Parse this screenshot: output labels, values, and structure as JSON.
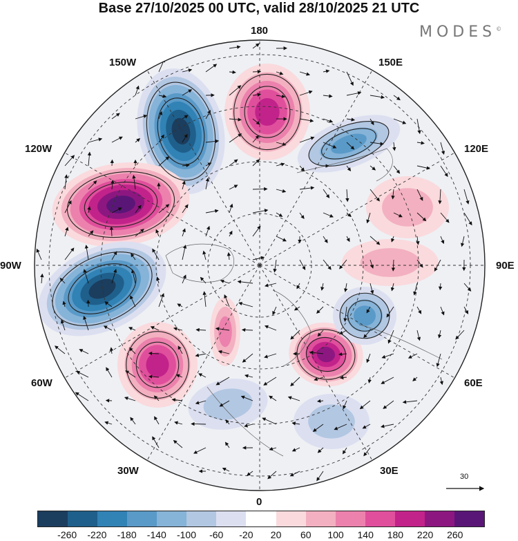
{
  "title": "Base 27/10/2025 00 UTC, valid 28/10/2025 21 UTC",
  "brand": "MODES",
  "brand_mark": "©",
  "longitudes": {
    "lon_180": "180",
    "lon_150e": "150E",
    "lon_120e": "120E",
    "lon_90e": "90E",
    "lon_60e": "60E",
    "lon_30e": "30E",
    "lon_0": "0",
    "lon_30w": "30W",
    "lon_60w": "60W",
    "lon_90w": "90W",
    "lon_120w": "120W",
    "lon_150w": "150W"
  },
  "reference_vector": {
    "value": "30"
  },
  "colorbar": {
    "labels": [
      "-260",
      "-220",
      "-180",
      "-140",
      "-100",
      "-60",
      "-20",
      "20",
      "60",
      "100",
      "140",
      "180",
      "220",
      "260"
    ],
    "colors": [
      "#1b3d5e",
      "#1f5f8b",
      "#3182b5",
      "#5a9ac8",
      "#86b3d8",
      "#b2c7e2",
      "#dcdff0",
      "#ffffff",
      "#fadadd",
      "#f3b0c0",
      "#ec81ad",
      "#e04f9c",
      "#c2238a",
      "#8d1781",
      "#5a1677"
    ]
  },
  "anomalies": [
    {
      "id": "low-150w",
      "value": -300
    },
    {
      "id": "high-180",
      "value": 220
    },
    {
      "id": "low-150e",
      "value": -160
    },
    {
      "id": "high-120w",
      "value": 300
    },
    {
      "id": "low-90w",
      "value": -300
    },
    {
      "id": "high-50w",
      "value": 200
    },
    {
      "id": "high-20e",
      "value": 230
    },
    {
      "id": "low-70e",
      "value": -180
    },
    {
      "id": "high-0",
      "value": 110
    },
    {
      "id": "low-10w",
      "value": -90
    },
    {
      "id": "low-20e",
      "value": -70
    },
    {
      "id": "high-90e",
      "value": 80
    },
    {
      "id": "high-100e",
      "value": 70
    }
  ]
}
